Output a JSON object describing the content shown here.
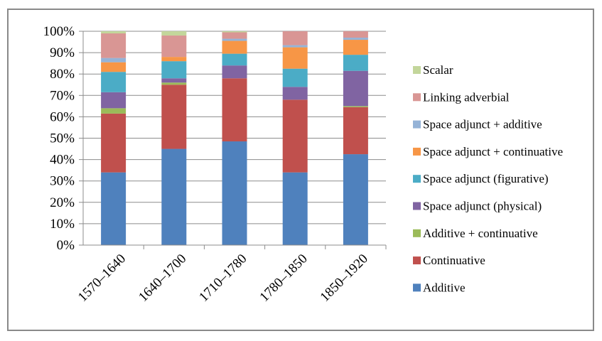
{
  "chart_data": {
    "type": "bar",
    "stacked": true,
    "percent": true,
    "title": "",
    "xlabel": "",
    "ylabel": "",
    "ylim": [
      0,
      100
    ],
    "y_ticks": [
      "0%",
      "10%",
      "20%",
      "30%",
      "40%",
      "50%",
      "60%",
      "70%",
      "80%",
      "90%",
      "100%"
    ],
    "grid": true,
    "legend_position": "right",
    "categories": [
      "1570–1640",
      "1640–1700",
      "1710–1780",
      "1780–1850",
      "1850–1920"
    ],
    "series": [
      {
        "name": "Additive",
        "color": "#4F81BD",
        "values": [
          34,
          45,
          48.5,
          34,
          42.5
        ]
      },
      {
        "name": "Continuative",
        "color": "#C0504D",
        "values": [
          27.5,
          30,
          29.5,
          34,
          22
        ]
      },
      {
        "name": "Additive + continuative",
        "color": "#9BBB59",
        "values": [
          2.5,
          1,
          0,
          0,
          0.5
        ]
      },
      {
        "name": "Space adjunct (physical)",
        "color": "#8064A2",
        "values": [
          7.5,
          2,
          6,
          6,
          16.5
        ]
      },
      {
        "name": "Space adjunct (figurative)",
        "color": "#4BACC6",
        "values": [
          9.5,
          8,
          5.5,
          8.5,
          7.5
        ]
      },
      {
        "name": "Space adjunct + continuative",
        "color": "#F79646",
        "values": [
          4.5,
          2,
          6,
          10,
          7
        ]
      },
      {
        "name": "Space adjunct + additive",
        "color": "#95B3D7",
        "values": [
          2,
          0,
          1,
          1,
          1
        ]
      },
      {
        "name": "Linking adverbial",
        "color": "#D99694",
        "values": [
          11.5,
          10,
          3,
          6.5,
          3
        ]
      },
      {
        "name": "Scalar",
        "color": "#C3D69B",
        "values": [
          1,
          2,
          0.5,
          0,
          0
        ]
      }
    ]
  }
}
